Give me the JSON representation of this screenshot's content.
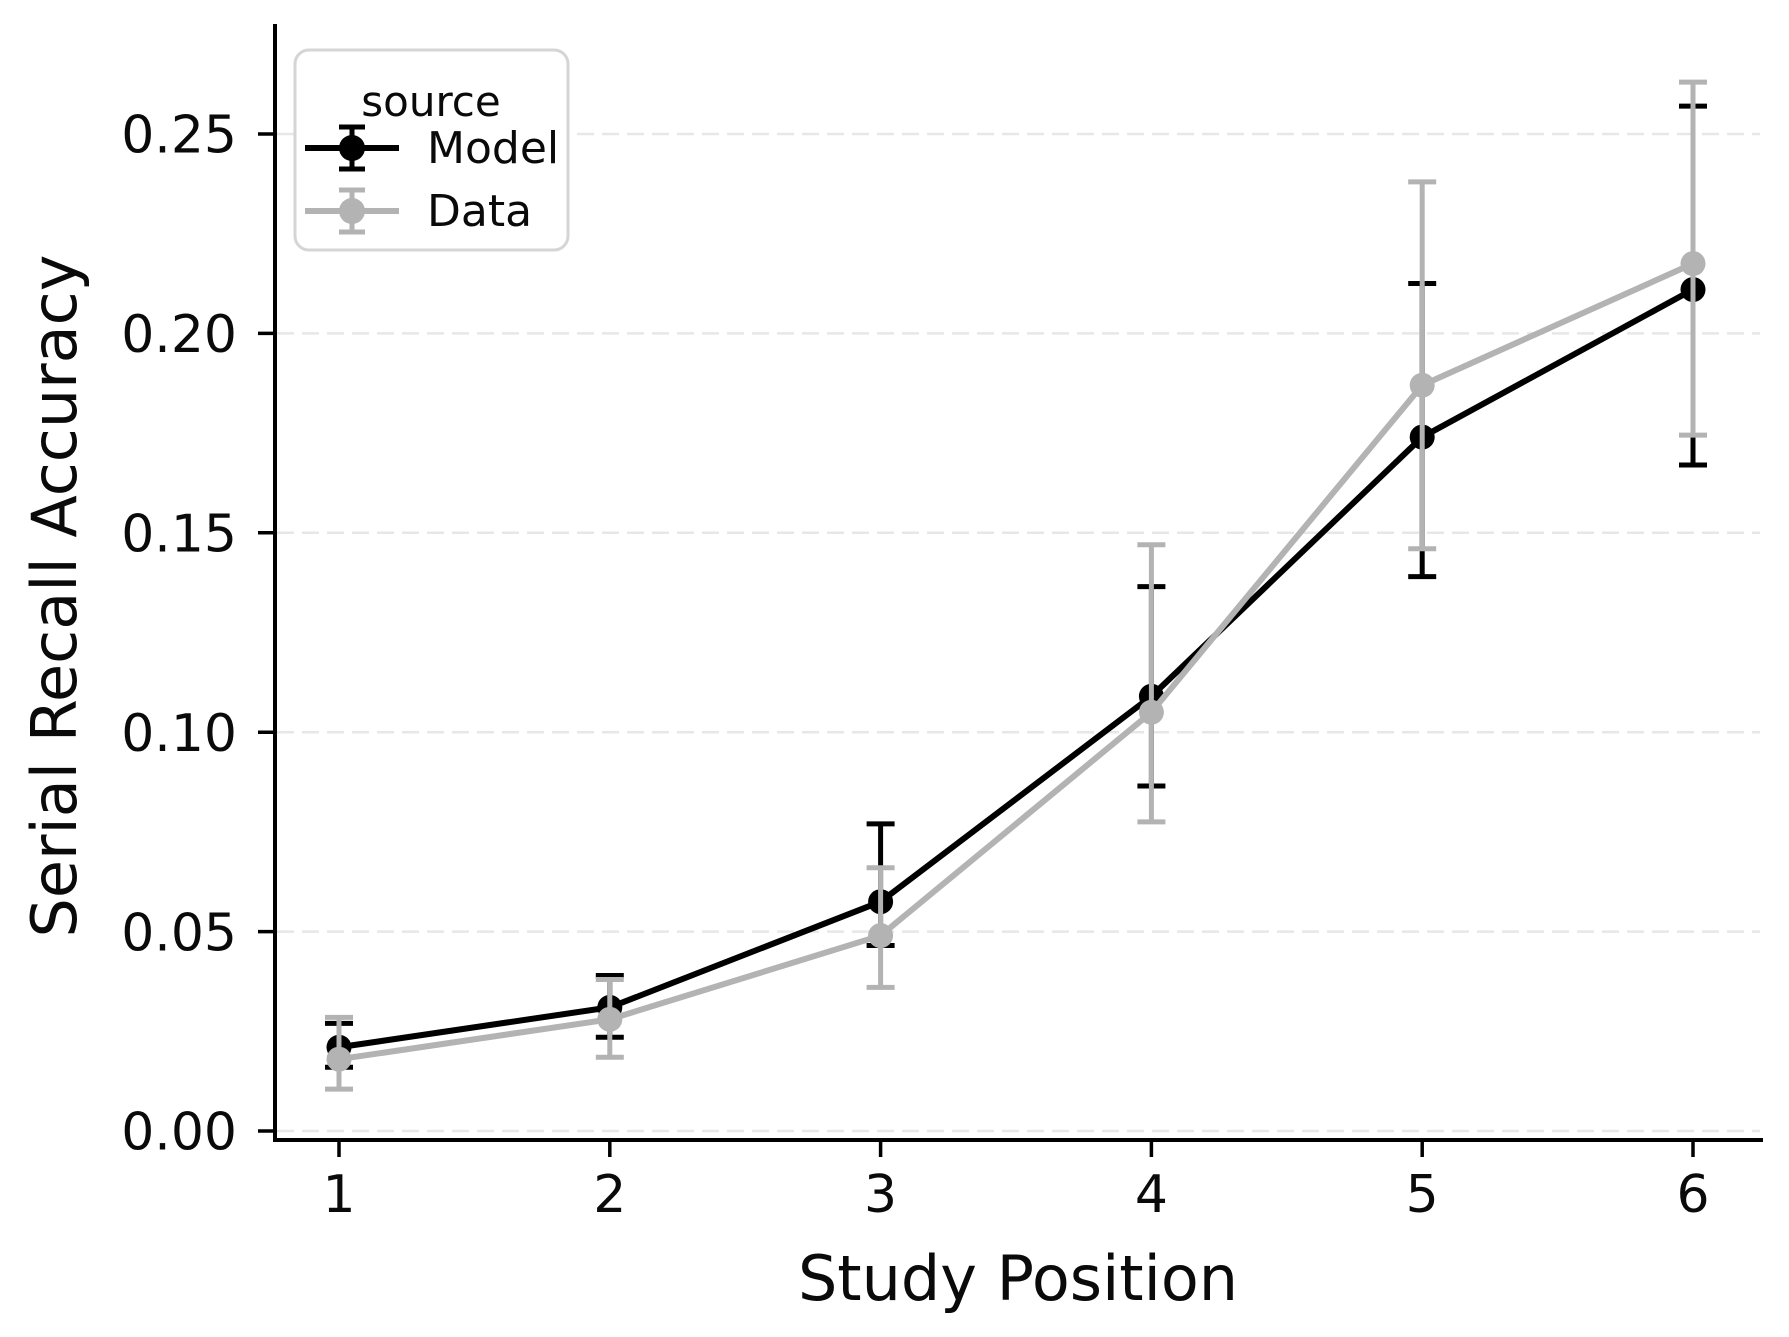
{
  "figure": {
    "background": "#ffffff"
  },
  "chart_data": {
    "type": "line",
    "title": "",
    "xlabel": "Study Position",
    "ylabel": "Serial Recall Accuracy",
    "categories": [
      "1",
      "2",
      "3",
      "4",
      "5",
      "6"
    ],
    "yticks": [
      0.0,
      0.05,
      0.1,
      0.15,
      0.2,
      0.25
    ],
    "ytick_labels": [
      "0.00",
      "0.05",
      "0.10",
      "0.15",
      "0.20",
      "0.25"
    ],
    "ylim": [
      -0.002,
      0.28
    ],
    "grid": "horizontal-dashed",
    "grid_color": "#e7e7e7",
    "axis_color": "#000000",
    "legend": {
      "title": "source",
      "position": "upper-left",
      "entries": [
        "Model",
        "Data"
      ]
    },
    "series": [
      {
        "name": "Model",
        "color": "#000000",
        "marker": "circle-with-errorbar",
        "values": [
          0.021,
          0.031,
          0.0575,
          0.109,
          0.174,
          0.211
        ],
        "err_lo": [
          0.016,
          0.0235,
          0.0465,
          0.0865,
          0.139,
          0.167
        ],
        "err_hi": [
          0.027,
          0.039,
          0.077,
          0.1365,
          0.2125,
          0.257
        ]
      },
      {
        "name": "Data",
        "color": "#b3b3b3",
        "marker": "circle-with-errorbar",
        "values": [
          0.018,
          0.028,
          0.049,
          0.105,
          0.187,
          0.2175
        ],
        "err_lo": [
          0.0105,
          0.0185,
          0.036,
          0.0775,
          0.146,
          0.1745
        ],
        "err_hi": [
          0.0285,
          0.038,
          0.066,
          0.147,
          0.238,
          0.263
        ]
      }
    ]
  }
}
